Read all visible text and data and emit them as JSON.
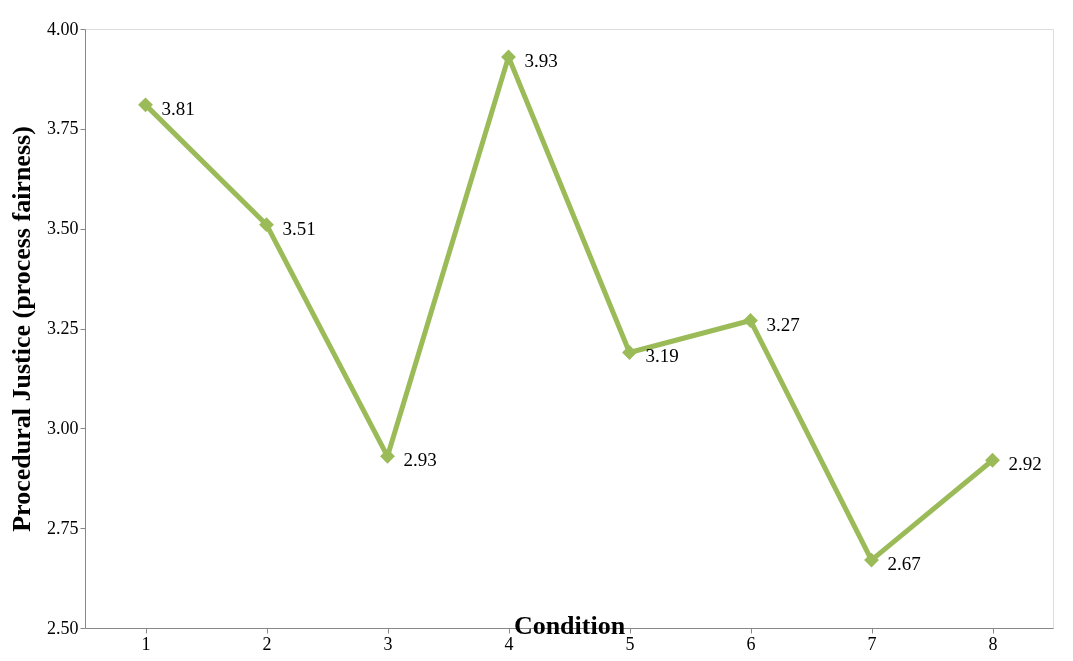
{
  "chart_data": {
    "type": "line",
    "xlabel": "Condition",
    "ylabel": "Procedural Justice (process fairness)",
    "categories": [
      "1",
      "2",
      "3",
      "4",
      "5",
      "6",
      "7",
      "8"
    ],
    "series": [
      {
        "color": "#9bbb59",
        "values": [
          3.81,
          3.51,
          2.93,
          3.93,
          3.19,
          3.27,
          2.67,
          2.92
        ]
      }
    ],
    "ylim": [
      2.5,
      4.0
    ],
    "yticks": [
      {
        "value": 2.5,
        "label": "2.50"
      },
      {
        "value": 2.75,
        "label": "2.75"
      },
      {
        "value": 3.0,
        "label": "3.00"
      },
      {
        "value": 3.25,
        "label": "3.25"
      },
      {
        "value": 3.5,
        "label": "3.50"
      },
      {
        "value": 3.75,
        "label": "3.75"
      },
      {
        "value": 4.0,
        "label": "4.00"
      }
    ],
    "data_labels": true,
    "grid": false,
    "legend": false,
    "marker": "diamond",
    "line_style": "solid"
  }
}
